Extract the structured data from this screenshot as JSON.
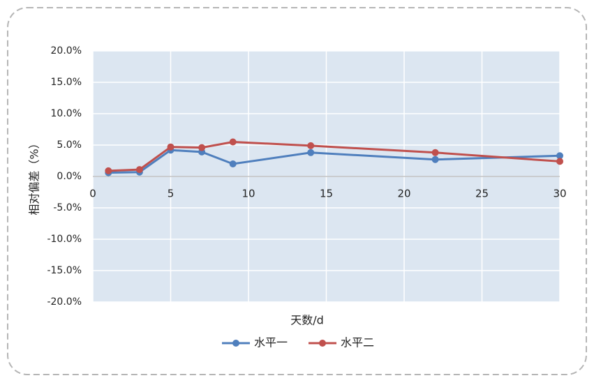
{
  "chart_data": {
    "type": "line",
    "x_label": "天数/d",
    "y_label": "相对偏差（%）",
    "x": [
      1,
      3,
      5,
      7,
      9,
      14,
      22,
      30
    ],
    "series": [
      {
        "name": "水平一",
        "color": "#4f7fbd",
        "values": [
          0.6,
          0.7,
          4.2,
          3.9,
          2.0,
          3.8,
          2.7,
          3.3
        ]
      },
      {
        "name": "水平二",
        "color": "#c0504d",
        "values": [
          0.9,
          1.1,
          4.7,
          4.6,
          5.5,
          4.9,
          3.8,
          2.4
        ]
      }
    ],
    "xlim": [
      0,
      30
    ],
    "xticks": [
      0,
      5,
      10,
      15,
      20,
      25,
      30
    ],
    "ylim": [
      -20,
      20
    ],
    "yticks": [
      {
        "value": -20,
        "label": "-20.0%"
      },
      {
        "value": -15,
        "label": "-15.0%"
      },
      {
        "value": -10,
        "label": "-10.0%"
      },
      {
        "value": -5,
        "label": "-5.0%"
      },
      {
        "value": 0,
        "label": "0.0%"
      },
      {
        "value": 5,
        "label": "5.0%"
      },
      {
        "value": 10,
        "label": "10.0%"
      },
      {
        "value": 15,
        "label": "15.0%"
      },
      {
        "value": 20,
        "label": "20.0%"
      }
    ],
    "grid": true,
    "legend": "bottom"
  }
}
